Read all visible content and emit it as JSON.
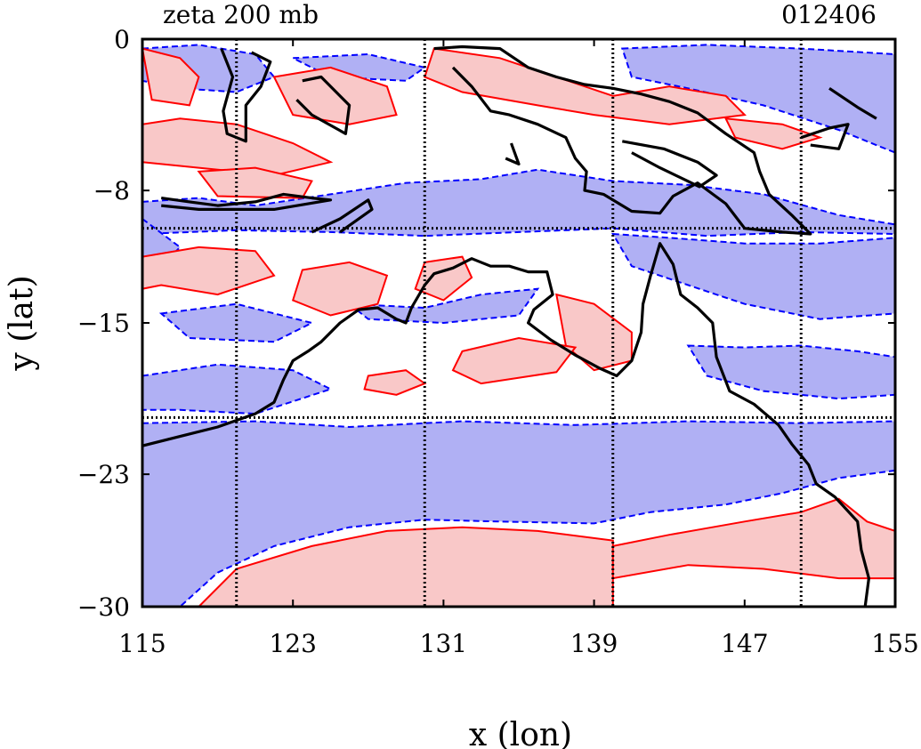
{
  "figure": {
    "title_left": "zeta 200 mb",
    "title_right": "012406",
    "xlabel": "x (lon)",
    "ylabel": "y (lat)"
  },
  "axes": {
    "xlim": [
      115,
      155
    ],
    "ylim": [
      -30,
      0
    ],
    "xticks": [
      115,
      123,
      131,
      139,
      147,
      155
    ],
    "yticks": [
      0,
      -8,
      -15,
      -23,
      -30
    ],
    "xtick_labels": [
      "115",
      "123",
      "131",
      "139",
      "147",
      "155"
    ],
    "ytick_labels": [
      "0",
      "−8",
      "−15",
      "−23",
      "−30"
    ],
    "grid_lon": [
      120,
      130,
      140,
      150
    ],
    "grid_lat": [
      -10,
      -20
    ]
  },
  "colors": {
    "positive_fill": "#f9c8c8",
    "positive_line": "#ff0000",
    "negative_fill": "#b0b0f4",
    "negative_line": "#0000ff",
    "coastline": "#000000",
    "grid": "#000000"
  },
  "chart_data": {
    "type": "heatmap",
    "variable": "zeta",
    "level": "200 mb",
    "positive_regions": [
      [
        [
          115,
          -0.5
        ],
        [
          117,
          -1
        ],
        [
          118,
          -2
        ],
        [
          117.5,
          -3.5
        ],
        [
          115.5,
          -3.2
        ]
      ],
      [
        [
          115,
          -4.5
        ],
        [
          117,
          -4.2
        ],
        [
          120,
          -4.5
        ],
        [
          123,
          -5.5
        ],
        [
          125,
          -6.5
        ],
        [
          122,
          -7.2
        ],
        [
          118,
          -6.8
        ],
        [
          115,
          -6.5
        ]
      ],
      [
        [
          118,
          -7
        ],
        [
          121,
          -6.8
        ],
        [
          124,
          -7.5
        ],
        [
          123.5,
          -8.4
        ],
        [
          119,
          -8.3
        ]
      ],
      [
        [
          122,
          -2
        ],
        [
          125,
          -1.5
        ],
        [
          128,
          -2.5
        ],
        [
          128.5,
          -4
        ],
        [
          126,
          -4.5
        ],
        [
          123,
          -4
        ]
      ],
      [
        [
          130.5,
          -0.5
        ],
        [
          134,
          -1
        ],
        [
          137,
          -2
        ],
        [
          140,
          -3
        ],
        [
          143,
          -2.5
        ],
        [
          146,
          -3
        ],
        [
          147,
          -4
        ],
        [
          143,
          -4.5
        ],
        [
          139,
          -4
        ],
        [
          136,
          -3.5
        ],
        [
          132,
          -2.8
        ],
        [
          130,
          -2
        ]
      ],
      [
        [
          146,
          -4.2
        ],
        [
          149,
          -4.5
        ],
        [
          151,
          -5.2
        ],
        [
          149,
          -5.8
        ],
        [
          146.5,
          -5.2
        ]
      ],
      [
        [
          115,
          -11.5
        ],
        [
          118,
          -11
        ],
        [
          121,
          -11.2
        ],
        [
          122,
          -12.5
        ],
        [
          119,
          -13.5
        ],
        [
          116,
          -13
        ],
        [
          115,
          -13.2
        ]
      ],
      [
        [
          123.5,
          -12.2
        ],
        [
          126,
          -11.8
        ],
        [
          128,
          -12.5
        ],
        [
          127.5,
          -14
        ],
        [
          125,
          -14.6
        ],
        [
          123,
          -13.8
        ]
      ],
      [
        [
          130,
          -11.8
        ],
        [
          132,
          -11.5
        ],
        [
          132.5,
          -12.6
        ],
        [
          131,
          -13.8
        ],
        [
          129.5,
          -13.2
        ]
      ],
      [
        [
          137,
          -13.5
        ],
        [
          139,
          -14
        ],
        [
          141,
          -15.5
        ],
        [
          141,
          -17
        ],
        [
          139,
          -17.5
        ],
        [
          137.5,
          -16.2
        ]
      ],
      [
        [
          132,
          -16.5
        ],
        [
          135,
          -15.8
        ],
        [
          138,
          -16.3
        ],
        [
          137,
          -17.6
        ],
        [
          133,
          -18.2
        ],
        [
          131.5,
          -17.5
        ]
      ],
      [
        [
          127,
          -17.8
        ],
        [
          129,
          -17.5
        ],
        [
          130,
          -18.2
        ],
        [
          128.5,
          -18.8
        ],
        [
          126.8,
          -18.5
        ]
      ],
      [
        [
          118,
          -30
        ],
        [
          120,
          -28
        ],
        [
          124,
          -26.8
        ],
        [
          128,
          -26
        ],
        [
          132,
          -25.8
        ],
        [
          136,
          -26
        ],
        [
          140,
          -26.5
        ],
        [
          140,
          -30
        ]
      ],
      [
        [
          140,
          -26.8
        ],
        [
          143,
          -26.2
        ],
        [
          147,
          -25.5
        ],
        [
          150,
          -25
        ],
        [
          152,
          -24.3
        ],
        [
          153.5,
          -25.5
        ],
        [
          155,
          -26
        ],
        [
          155,
          -28.5
        ],
        [
          152,
          -28.5
        ],
        [
          148,
          -28
        ],
        [
          144,
          -27.8
        ],
        [
          140,
          -28.5
        ]
      ]
    ],
    "negative_regions": [
      [
        [
          115,
          -0.5
        ],
        [
          118,
          -0.3
        ],
        [
          121,
          -0.8
        ],
        [
          122,
          -2
        ],
        [
          120,
          -2.8
        ],
        [
          117,
          -2.6
        ],
        [
          115,
          -2.2
        ]
      ],
      [
        [
          123,
          -1
        ],
        [
          127,
          -0.8
        ],
        [
          130,
          -1.5
        ],
        [
          129,
          -2.2
        ],
        [
          125,
          -2
        ]
      ],
      [
        [
          140.5,
          -0.5
        ],
        [
          145,
          -0.3
        ],
        [
          150,
          -0.5
        ],
        [
          155,
          -0.8
        ],
        [
          155,
          -6
        ],
        [
          152,
          -4.8
        ],
        [
          148,
          -3.5
        ],
        [
          144,
          -2.6
        ],
        [
          141,
          -2
        ]
      ],
      [
        [
          115,
          -8.6
        ],
        [
          118,
          -8.4
        ],
        [
          121,
          -8.8
        ],
        [
          125,
          -8.2
        ],
        [
          129,
          -7.6
        ],
        [
          133,
          -7.4
        ],
        [
          136,
          -6.9
        ],
        [
          140,
          -7.5
        ],
        [
          144,
          -7.7
        ],
        [
          148,
          -8.2
        ],
        [
          152,
          -9.3
        ],
        [
          155,
          -9.8
        ],
        [
          155,
          -10.3
        ],
        [
          150,
          -10.2
        ],
        [
          145,
          -10.4
        ],
        [
          140,
          -10
        ],
        [
          135,
          -10.2
        ],
        [
          130,
          -10.4
        ],
        [
          125,
          -10.2
        ],
        [
          120,
          -10.1
        ],
        [
          115,
          -10.3
        ]
      ],
      [
        [
          115,
          -9.5
        ],
        [
          117,
          -11
        ],
        [
          116,
          -12
        ],
        [
          115,
          -11.8
        ]
      ],
      [
        [
          140,
          -10.3
        ],
        [
          143,
          -10.5
        ],
        [
          147,
          -10.8
        ],
        [
          151,
          -10.8
        ],
        [
          155,
          -10.5
        ],
        [
          155,
          -14.5
        ],
        [
          151,
          -14.8
        ],
        [
          147,
          -14
        ],
        [
          144,
          -13
        ],
        [
          141,
          -12
        ]
      ],
      [
        [
          116,
          -14.5
        ],
        [
          120,
          -14
        ],
        [
          124,
          -15
        ],
        [
          122,
          -16
        ],
        [
          117.5,
          -15.8
        ]
      ],
      [
        [
          126,
          -14
        ],
        [
          130,
          -14.2
        ],
        [
          133,
          -13.5
        ],
        [
          136,
          -13.2
        ],
        [
          135,
          -14.6
        ],
        [
          131,
          -15
        ],
        [
          127,
          -14.8
        ]
      ],
      [
        [
          115,
          -17.8
        ],
        [
          119,
          -17.2
        ],
        [
          123,
          -17.5
        ],
        [
          125,
          -18.5
        ],
        [
          121,
          -19.8
        ],
        [
          117,
          -19.6
        ],
        [
          115,
          -19.6
        ]
      ],
      [
        [
          144,
          -16.2
        ],
        [
          147,
          -16.3
        ],
        [
          150,
          -16.2
        ],
        [
          153,
          -16.5
        ],
        [
          155,
          -16.8
        ],
        [
          155,
          -18.8
        ],
        [
          152,
          -19
        ],
        [
          148,
          -18.6
        ],
        [
          145,
          -17.8
        ]
      ],
      [
        [
          115,
          -20.3
        ],
        [
          121,
          -20.2
        ],
        [
          126,
          -20.5
        ],
        [
          132,
          -20.2
        ],
        [
          138,
          -20.4
        ],
        [
          144,
          -20.2
        ],
        [
          150,
          -20.3
        ],
        [
          155,
          -20.2
        ],
        [
          155,
          -22.8
        ],
        [
          152,
          -23.2
        ],
        [
          149,
          -24
        ],
        [
          146,
          -24.6
        ],
        [
          142,
          -25
        ],
        [
          139,
          -25.6
        ],
        [
          134,
          -25.5
        ],
        [
          130,
          -25.4
        ],
        [
          126,
          -25.8
        ],
        [
          122,
          -26.8
        ],
        [
          119,
          -28.2
        ],
        [
          117,
          -30
        ],
        [
          115,
          -30
        ]
      ]
    ],
    "coastline": [
      [
        [
          115,
          -21.5
        ],
        [
          117,
          -21
        ],
        [
          119,
          -20.5
        ],
        [
          121,
          -19.8
        ],
        [
          122,
          -19.2
        ],
        [
          122.5,
          -18
        ],
        [
          123,
          -17
        ],
        [
          123.8,
          -16.5
        ],
        [
          124.5,
          -16
        ],
        [
          125.5,
          -15
        ],
        [
          126.5,
          -14.3
        ],
        [
          127.5,
          -14.2
        ],
        [
          128.5,
          -14.8
        ],
        [
          129,
          -15
        ],
        [
          129.3,
          -14.2
        ],
        [
          130,
          -13
        ],
        [
          130.5,
          -12.4
        ],
        [
          131.5,
          -12.1
        ],
        [
          132.5,
          -11.6
        ],
        [
          133.5,
          -12
        ],
        [
          134.5,
          -12
        ],
        [
          135.5,
          -12.3
        ],
        [
          136.5,
          -12.3
        ],
        [
          136.8,
          -13.5
        ],
        [
          135.8,
          -14.3
        ],
        [
          135.5,
          -15
        ],
        [
          136.7,
          -15.9
        ],
        [
          138,
          -16.7
        ],
        [
          139.3,
          -17.4
        ],
        [
          140.2,
          -17.8
        ],
        [
          141,
          -17
        ],
        [
          141.5,
          -15.5
        ],
        [
          141.6,
          -14
        ],
        [
          142,
          -12.5
        ],
        [
          142.5,
          -10.8
        ],
        [
          143.2,
          -11.9
        ],
        [
          143.6,
          -13.5
        ],
        [
          144.5,
          -14.2
        ],
        [
          145.3,
          -15
        ],
        [
          145.5,
          -16.8
        ],
        [
          146.2,
          -18.6
        ],
        [
          147.5,
          -19.3
        ],
        [
          148.8,
          -20.4
        ],
        [
          149.5,
          -21.4
        ],
        [
          150.4,
          -22.5
        ],
        [
          150.8,
          -23.5
        ],
        [
          151.8,
          -24.2
        ],
        [
          153,
          -25.5
        ],
        [
          153.2,
          -27
        ],
        [
          153.6,
          -28.5
        ],
        [
          153.4,
          -30
        ]
      ],
      [
        [
          130.5,
          -0.5
        ],
        [
          132,
          -0.4
        ],
        [
          134,
          -0.5
        ],
        [
          135.5,
          -1.5
        ],
        [
          137,
          -2
        ],
        [
          138.5,
          -2.4
        ],
        [
          140,
          -2.6
        ],
        [
          141.5,
          -2.9
        ],
        [
          143,
          -3.3
        ],
        [
          144.5,
          -3.9
        ],
        [
          146,
          -5
        ],
        [
          147.5,
          -6
        ],
        [
          147.8,
          -7
        ],
        [
          148.3,
          -8.2
        ],
        [
          149.5,
          -9.3
        ],
        [
          150.5,
          -10.3
        ],
        [
          149,
          -10.2
        ],
        [
          147,
          -10
        ],
        [
          146,
          -8.7
        ],
        [
          144.5,
          -7.6
        ],
        [
          143.2,
          -8.3
        ],
        [
          142.5,
          -9.2
        ],
        [
          141,
          -9.1
        ],
        [
          139.5,
          -8.2
        ],
        [
          138.5,
          -8
        ],
        [
          138.6,
          -7
        ],
        [
          138,
          -6.3
        ],
        [
          137.5,
          -5.2
        ],
        [
          136,
          -4.5
        ],
        [
          134.5,
          -4
        ],
        [
          133.5,
          -3.8
        ],
        [
          132.5,
          -2.5
        ],
        [
          131.5,
          -1.5
        ]
      ],
      [
        [
          116,
          -8.4
        ],
        [
          117.5,
          -8.6
        ],
        [
          119,
          -8.8
        ],
        [
          121,
          -8.6
        ],
        [
          122.5,
          -8.2
        ],
        [
          124,
          -8.4
        ],
        [
          125,
          -8.5
        ],
        [
          122,
          -9
        ],
        [
          118,
          -9
        ],
        [
          116,
          -8.8
        ]
      ],
      [
        [
          124,
          -10.2
        ],
        [
          125.5,
          -9.5
        ],
        [
          127,
          -8.5
        ],
        [
          127.2,
          -9
        ],
        [
          125.5,
          -10.2
        ]
      ],
      [
        [
          119.2,
          -0.5
        ],
        [
          119.8,
          -2
        ],
        [
          119.3,
          -3.8
        ],
        [
          119.5,
          -5
        ],
        [
          120.5,
          -5.4
        ],
        [
          120.5,
          -3.5
        ],
        [
          121.3,
          -2.5
        ],
        [
          121.8,
          -1.2
        ],
        [
          120.8,
          -0.7
        ]
      ],
      [
        [
          123.5,
          -2.2
        ],
        [
          124.5,
          -2
        ],
        [
          126,
          -3.5
        ],
        [
          125.8,
          -5
        ],
        [
          124,
          -4
        ],
        [
          123.2,
          -3.2
        ]
      ],
      [
        [
          140.5,
          -5.4
        ],
        [
          142.7,
          -5.8
        ],
        [
          144.5,
          -6.5
        ],
        [
          145.5,
          -7.2
        ],
        [
          144.6,
          -7.8
        ],
        [
          142.5,
          -6.8
        ],
        [
          141,
          -6
        ]
      ],
      [
        [
          150,
          -5.2
        ],
        [
          151.5,
          -4.7
        ],
        [
          152.5,
          -4.5
        ],
        [
          152,
          -5.8
        ],
        [
          150.5,
          -5.6
        ]
      ],
      [
        [
          151.5,
          -2.6
        ],
        [
          153,
          -3.6
        ],
        [
          154,
          -4.2
        ]
      ],
      [
        [
          134.6,
          -5.5
        ],
        [
          135,
          -6.6
        ],
        [
          134.3,
          -6.3
        ]
      ]
    ]
  }
}
